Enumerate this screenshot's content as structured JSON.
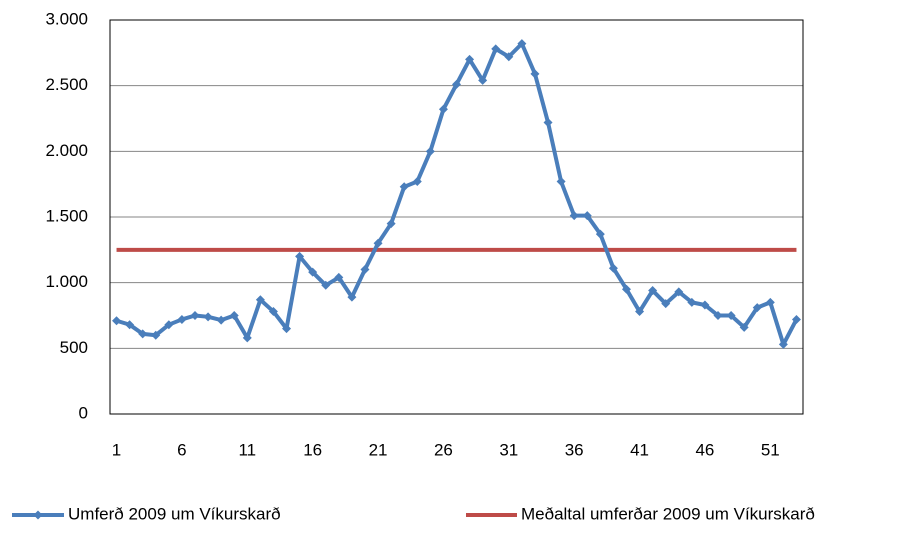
{
  "chart_data": {
    "type": "line",
    "categories": [
      1,
      null,
      null,
      null,
      null,
      6,
      null,
      null,
      null,
      null,
      11,
      null,
      null,
      null,
      null,
      16,
      null,
      null,
      null,
      null,
      21,
      null,
      null,
      null,
      null,
      26,
      null,
      null,
      null,
      null,
      31,
      null,
      null,
      null,
      null,
      36,
      null,
      null,
      null,
      null,
      41,
      null,
      null,
      null,
      null,
      46,
      null,
      null,
      null,
      null,
      51,
      null,
      null
    ],
    "series": [
      {
        "name": "Umferð 2009 um Víkurskarð",
        "color": "#4a7ebb",
        "values": [
          710,
          680,
          610,
          600,
          680,
          720,
          750,
          740,
          715,
          750,
          580,
          870,
          780,
          650,
          1200,
          1080,
          980,
          1040,
          890,
          1100,
          1300,
          1450,
          1730,
          1770,
          2000,
          2320,
          2510,
          2700,
          2540,
          2780,
          2720,
          2820,
          2590,
          2220,
          1770,
          1510,
          1510,
          1370,
          1110,
          950,
          780,
          940,
          840,
          930,
          850,
          830,
          750,
          750,
          660,
          810,
          850,
          530,
          720
        ]
      }
    ],
    "mean_line": {
      "name": "Meðaltal umferðar 2009 um Víkurskarð",
      "color": "#be4b48",
      "value": 1250
    },
    "ylim": [
      0,
      3000
    ],
    "yticks": [
      0,
      500,
      {
        "value": 1000,
        "label": "1.000"
      },
      {
        "value": 1500,
        "label": "1.500"
      },
      {
        "value": 2000,
        "label": "2.000"
      },
      {
        "value": 2500,
        "label": "2.500"
      },
      {
        "value": 3000,
        "label": "3.000"
      }
    ],
    "grid": true
  }
}
